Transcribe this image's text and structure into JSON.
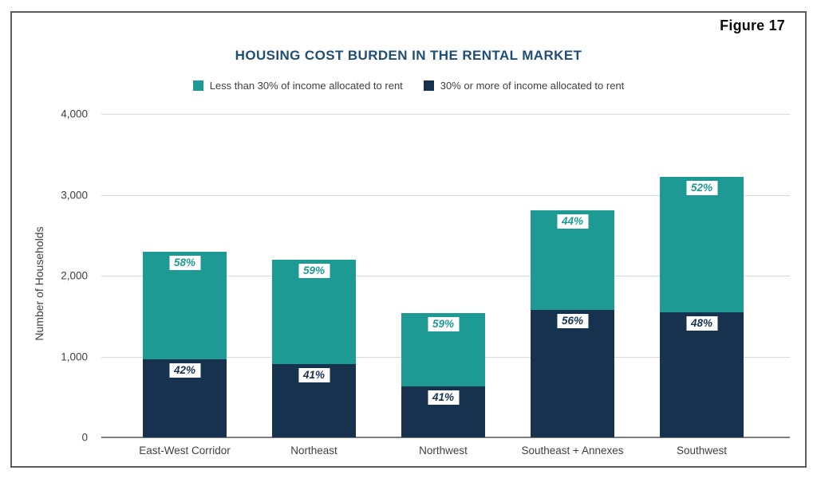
{
  "figure_label": "Figure 17",
  "chart_data": {
    "type": "bar",
    "stacked": true,
    "title": "HOUSING COST BURDEN IN THE RENTAL MARKET",
    "xlabel": "",
    "ylabel": "Number of Households",
    "ylim": [
      0,
      4000
    ],
    "grid": true,
    "legend_position": "top-center",
    "yticks": [
      {
        "value": 0,
        "label": "0"
      },
      {
        "value": 1000,
        "label": "1,000"
      },
      {
        "value": 2000,
        "label": "2,000"
      },
      {
        "value": 3000,
        "label": "3,000"
      },
      {
        "value": 4000,
        "label": "4,000"
      }
    ],
    "categories": [
      "East-West Corridor",
      "Northeast",
      "Northwest",
      "Southeast + Annexes",
      "Southwest"
    ],
    "series": [
      {
        "name": "30% or more of income allocated to rent",
        "stack_order": "bottom",
        "color": "#17324e",
        "values": [
          966,
          902,
          631,
          1574,
          1546
        ],
        "percent_labels": [
          "42%",
          "41%",
          "41%",
          "56%",
          "48%"
        ]
      },
      {
        "name": "Less than 30% of income allocated to rent",
        "stack_order": "top",
        "color": "#1e9a94",
        "values": [
          1334,
          1298,
          909,
          1236,
          1674
        ],
        "percent_labels": [
          "58%",
          "59%",
          "59%",
          "44%",
          "52%"
        ]
      }
    ],
    "bar_totals": [
      2300,
      2200,
      1540,
      2810,
      3220
    ]
  },
  "legend": {
    "items": [
      {
        "label": "Less than 30% of income allocated to rent",
        "color": "#1e9a94"
      },
      {
        "label": "30% or more of income allocated to rent",
        "color": "#17324e"
      }
    ]
  },
  "colors": {
    "teal": "#1e9a94",
    "navy": "#17324e",
    "title_blue": "#1f4e79",
    "gridline": "#d9d9d9",
    "axis_line": "#7f7f7f",
    "tick_text": "#404040",
    "frame_border": "#595a5c"
  }
}
